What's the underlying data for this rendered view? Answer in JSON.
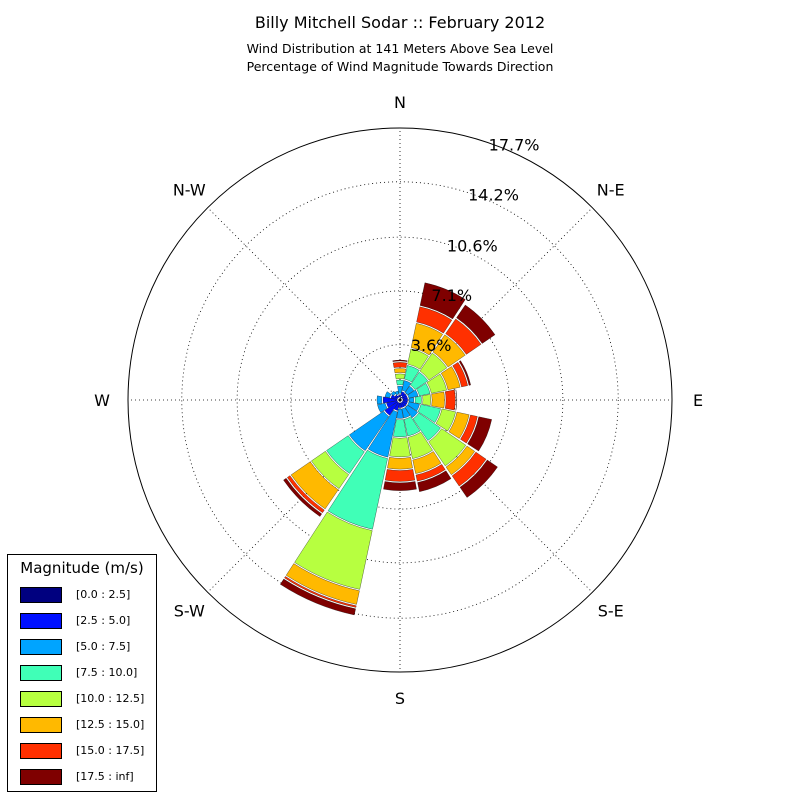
{
  "title": "Billy Mitchell Sodar :: February 2012",
  "subtitle_lines": [
    "Wind Distribution at 141 Meters Above Sea Level",
    "Percentage of Wind Magnitude Towards Direction"
  ],
  "colors": [
    "#00007f",
    "#0010ff",
    "#00a4ff",
    "#40ffb7",
    "#b7ff40",
    "#ffb900",
    "#ff3000",
    "#7f0000"
  ],
  "chart_data": {
    "type": "windrose",
    "title": "Billy Mitchell Sodar :: February 2012",
    "directions": [
      "N",
      "N-E",
      "E",
      "S-E",
      "S",
      "S-W",
      "W",
      "N-W"
    ],
    "radial_ticks": [
      "3.6%",
      "7.1%",
      "10.6%",
      "14.2%",
      "17.7%"
    ],
    "radial_tick_values": [
      3.6,
      7.1,
      10.6,
      14.2,
      17.7
    ],
    "rmax": 17.7,
    "sector_count": 16,
    "sector_angles_deg": [
      0,
      22.5,
      45,
      67.5,
      90,
      112.5,
      135,
      157.5,
      180,
      202.5,
      225,
      247.5,
      270,
      292.5,
      315,
      337.5
    ],
    "legend_title": "Magnitude (m/s)",
    "bins": [
      "[0.0 : 2.5]",
      "[2.5 : 5.0]",
      "[5.0 : 7.5]",
      "[7.5 : 10.0]",
      "[10.0 : 12.5]",
      "[12.5 : 15.0]",
      "[15.0 : 17.5]",
      "[17.5 : inf]"
    ],
    "cumulative_percent": [
      [
        0.1,
        0.35,
        0.9,
        1.3,
        1.7,
        2.05,
        2.45,
        2.6
      ],
      [
        0.2,
        0.55,
        1.3,
        2.3,
        3.4,
        5.1,
        6.2,
        7.8
      ],
      [
        0.1,
        0.5,
        1.1,
        2.2,
        3.7,
        5.15,
        6.4,
        7.5
      ],
      [
        0.1,
        0.5,
        1.2,
        2.0,
        3.1,
        4.0,
        4.5,
        4.7
      ],
      [
        0.1,
        0.5,
        0.9,
        1.4,
        2.0,
        2.9,
        3.6,
        3.7
      ],
      [
        0.1,
        0.5,
        1.3,
        2.7,
        3.7,
        4.6,
        5.15,
        6.1
      ],
      [
        0.1,
        0.5,
        1.4,
        3.2,
        5.2,
        5.9,
        6.8,
        7.7
      ],
      [
        0.1,
        0.5,
        1.2,
        2.4,
        3.9,
        4.9,
        5.4,
        6.1
      ],
      [
        0.1,
        0.5,
        1.2,
        2.4,
        3.7,
        4.5,
        5.3,
        5.9
      ],
      [
        0.1,
        0.7,
        3.8,
        8.6,
        12.6,
        13.6,
        13.8,
        14.3
      ],
      [
        0.1,
        1.2,
        4.0,
        5.8,
        7.0,
        8.6,
        8.9,
        9.2
      ],
      [
        0.1,
        0.9,
        1.5,
        1.5,
        1.5,
        1.5,
        1.5,
        1.5
      ],
      [
        0.1,
        1.1,
        1.5,
        1.5,
        1.5,
        1.5,
        1.5,
        1.5
      ],
      [
        0.1,
        0.6,
        1.0,
        1.0,
        1.0,
        1.0,
        1.0,
        1.0
      ],
      [
        0.1,
        0.4,
        0.7,
        0.7,
        0.7,
        0.7,
        0.7,
        0.7
      ],
      [
        0.1,
        0.3,
        0.6,
        0.6,
        0.6,
        0.6,
        0.6,
        0.6
      ]
    ]
  }
}
